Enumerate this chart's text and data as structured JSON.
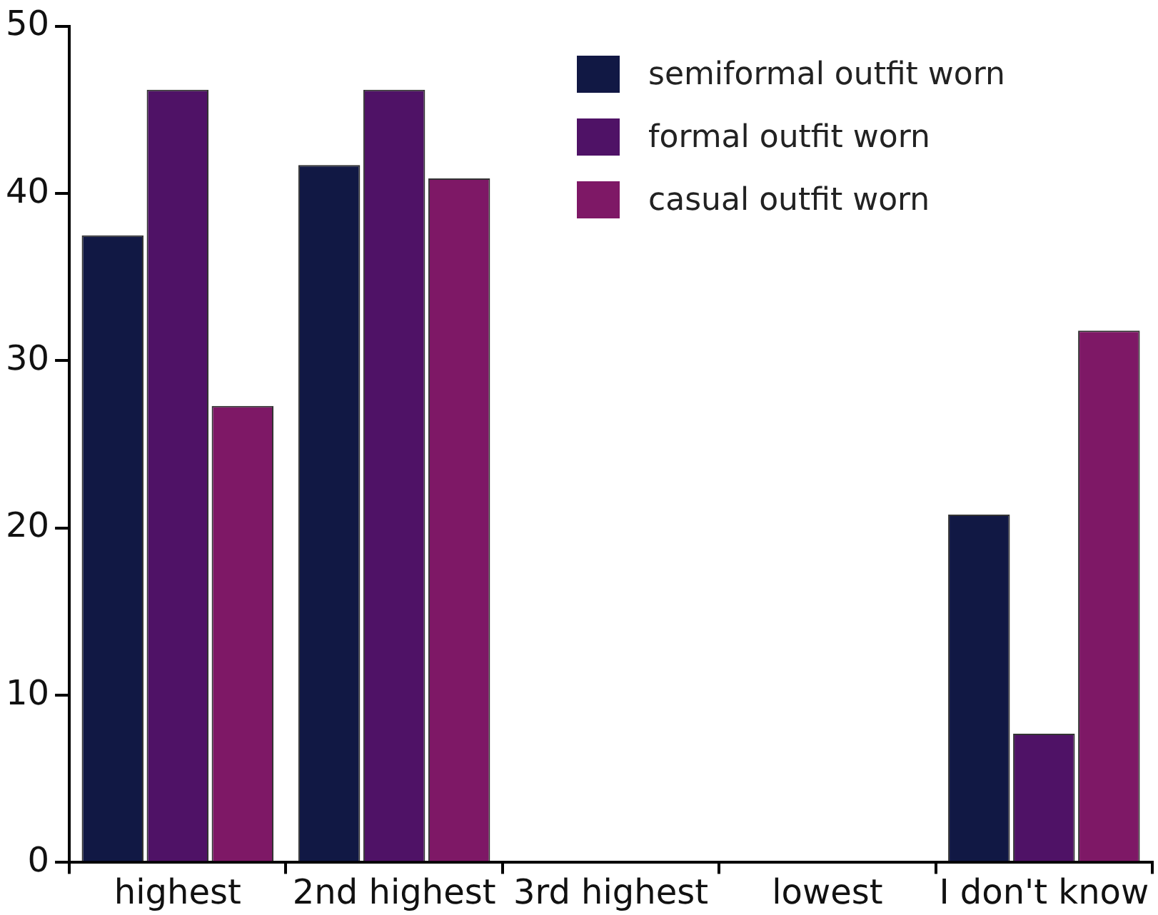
{
  "chart_data": {
    "type": "bar",
    "categories": [
      "highest",
      "2nd highest",
      "3rd highest",
      "lowest",
      "I don't know"
    ],
    "series": [
      {
        "name": "semiformal outfit worn",
        "color": "#111844",
        "values": [
          37.5,
          41.7,
          0,
          0,
          20.8
        ]
      },
      {
        "name": "formal outfit worn",
        "color": "#4f1266",
        "values": [
          46.2,
          46.2,
          0,
          0,
          7.7
        ]
      },
      {
        "name": "casual outfit worn",
        "color": "#7e1866",
        "values": [
          27.3,
          40.9,
          0,
          0,
          31.8
        ]
      }
    ],
    "ylim": [
      0,
      50
    ],
    "yticks": [
      0,
      10,
      20,
      30,
      40,
      50
    ],
    "grid": false,
    "legend": "top right"
  }
}
